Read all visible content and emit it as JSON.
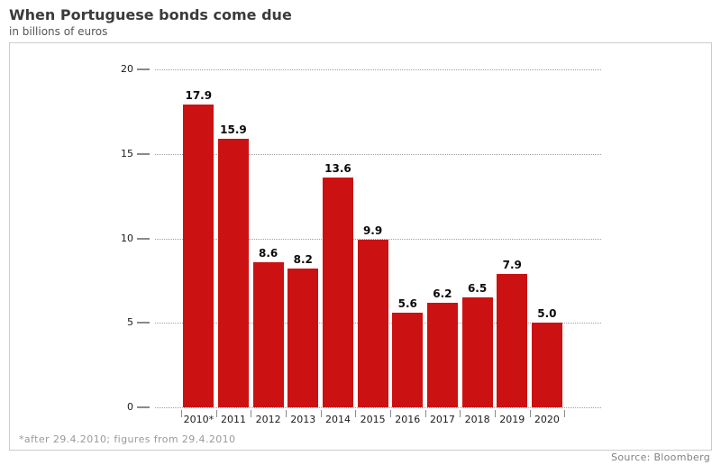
{
  "header": {
    "title": "When Portuguese bonds come due",
    "subtitle": "in billions of euros"
  },
  "footer": {
    "footnote": "*after 29.4.2010; figures from 29.4.2010",
    "source": "Source: Bloomberg"
  },
  "chart_data": {
    "type": "bar",
    "title": "When Portuguese bonds come due",
    "subtitle": "in billions of euros",
    "categories": [
      "2010*",
      "2011",
      "2012",
      "2013",
      "2014",
      "2015",
      "2016",
      "2017",
      "2018",
      "2019",
      "2020"
    ],
    "values": [
      17.9,
      15.9,
      8.6,
      8.2,
      13.6,
      9.9,
      5.6,
      6.2,
      6.5,
      7.9,
      5.0
    ],
    "xlabel": "",
    "ylabel": "in billions of euros",
    "ylim": [
      0,
      20
    ],
    "yticks": [
      0,
      5,
      10,
      15,
      20
    ],
    "bar_color": "#cc1112",
    "grid": "horizontal-dotted",
    "legend": "none",
    "value_labels": true
  }
}
